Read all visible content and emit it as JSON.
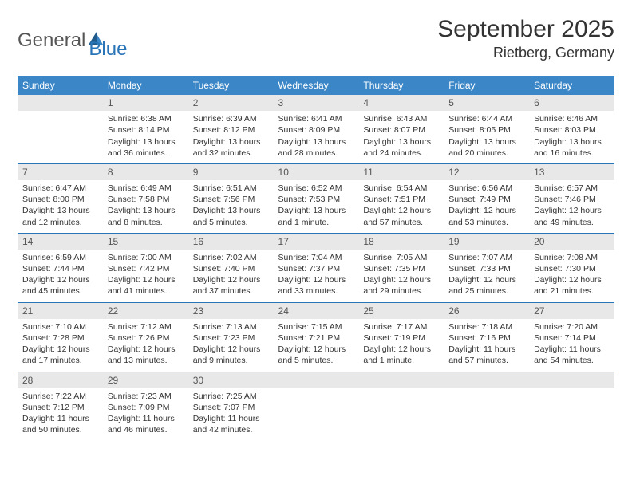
{
  "logo": {
    "text1": "General",
    "text2": "Blue"
  },
  "title": "September 2025",
  "location": "Rietberg, Germany",
  "colors": {
    "header_bg": "#3b86c6",
    "header_text": "#ffffff",
    "border": "#2a74b8",
    "daynum_bg": "#e8e8e8",
    "text": "#333333",
    "logo_gray": "#555555",
    "logo_blue": "#2a74b8"
  },
  "fonts": {
    "title_size": 30,
    "location_size": 18,
    "th_size": 12,
    "cell_size": 10.5,
    "daynum_size": 12
  },
  "daysOfWeek": [
    "Sunday",
    "Monday",
    "Tuesday",
    "Wednesday",
    "Thursday",
    "Friday",
    "Saturday"
  ],
  "weeks": [
    [
      {
        "n": "",
        "sr": "",
        "ss": "",
        "dl": ""
      },
      {
        "n": "1",
        "sr": "Sunrise: 6:38 AM",
        "ss": "Sunset: 8:14 PM",
        "dl": "Daylight: 13 hours and 36 minutes."
      },
      {
        "n": "2",
        "sr": "Sunrise: 6:39 AM",
        "ss": "Sunset: 8:12 PM",
        "dl": "Daylight: 13 hours and 32 minutes."
      },
      {
        "n": "3",
        "sr": "Sunrise: 6:41 AM",
        "ss": "Sunset: 8:09 PM",
        "dl": "Daylight: 13 hours and 28 minutes."
      },
      {
        "n": "4",
        "sr": "Sunrise: 6:43 AM",
        "ss": "Sunset: 8:07 PM",
        "dl": "Daylight: 13 hours and 24 minutes."
      },
      {
        "n": "5",
        "sr": "Sunrise: 6:44 AM",
        "ss": "Sunset: 8:05 PM",
        "dl": "Daylight: 13 hours and 20 minutes."
      },
      {
        "n": "6",
        "sr": "Sunrise: 6:46 AM",
        "ss": "Sunset: 8:03 PM",
        "dl": "Daylight: 13 hours and 16 minutes."
      }
    ],
    [
      {
        "n": "7",
        "sr": "Sunrise: 6:47 AM",
        "ss": "Sunset: 8:00 PM",
        "dl": "Daylight: 13 hours and 12 minutes."
      },
      {
        "n": "8",
        "sr": "Sunrise: 6:49 AM",
        "ss": "Sunset: 7:58 PM",
        "dl": "Daylight: 13 hours and 8 minutes."
      },
      {
        "n": "9",
        "sr": "Sunrise: 6:51 AM",
        "ss": "Sunset: 7:56 PM",
        "dl": "Daylight: 13 hours and 5 minutes."
      },
      {
        "n": "10",
        "sr": "Sunrise: 6:52 AM",
        "ss": "Sunset: 7:53 PM",
        "dl": "Daylight: 13 hours and 1 minute."
      },
      {
        "n": "11",
        "sr": "Sunrise: 6:54 AM",
        "ss": "Sunset: 7:51 PM",
        "dl": "Daylight: 12 hours and 57 minutes."
      },
      {
        "n": "12",
        "sr": "Sunrise: 6:56 AM",
        "ss": "Sunset: 7:49 PM",
        "dl": "Daylight: 12 hours and 53 minutes."
      },
      {
        "n": "13",
        "sr": "Sunrise: 6:57 AM",
        "ss": "Sunset: 7:46 PM",
        "dl": "Daylight: 12 hours and 49 minutes."
      }
    ],
    [
      {
        "n": "14",
        "sr": "Sunrise: 6:59 AM",
        "ss": "Sunset: 7:44 PM",
        "dl": "Daylight: 12 hours and 45 minutes."
      },
      {
        "n": "15",
        "sr": "Sunrise: 7:00 AM",
        "ss": "Sunset: 7:42 PM",
        "dl": "Daylight: 12 hours and 41 minutes."
      },
      {
        "n": "16",
        "sr": "Sunrise: 7:02 AM",
        "ss": "Sunset: 7:40 PM",
        "dl": "Daylight: 12 hours and 37 minutes."
      },
      {
        "n": "17",
        "sr": "Sunrise: 7:04 AM",
        "ss": "Sunset: 7:37 PM",
        "dl": "Daylight: 12 hours and 33 minutes."
      },
      {
        "n": "18",
        "sr": "Sunrise: 7:05 AM",
        "ss": "Sunset: 7:35 PM",
        "dl": "Daylight: 12 hours and 29 minutes."
      },
      {
        "n": "19",
        "sr": "Sunrise: 7:07 AM",
        "ss": "Sunset: 7:33 PM",
        "dl": "Daylight: 12 hours and 25 minutes."
      },
      {
        "n": "20",
        "sr": "Sunrise: 7:08 AM",
        "ss": "Sunset: 7:30 PM",
        "dl": "Daylight: 12 hours and 21 minutes."
      }
    ],
    [
      {
        "n": "21",
        "sr": "Sunrise: 7:10 AM",
        "ss": "Sunset: 7:28 PM",
        "dl": "Daylight: 12 hours and 17 minutes."
      },
      {
        "n": "22",
        "sr": "Sunrise: 7:12 AM",
        "ss": "Sunset: 7:26 PM",
        "dl": "Daylight: 12 hours and 13 minutes."
      },
      {
        "n": "23",
        "sr": "Sunrise: 7:13 AM",
        "ss": "Sunset: 7:23 PM",
        "dl": "Daylight: 12 hours and 9 minutes."
      },
      {
        "n": "24",
        "sr": "Sunrise: 7:15 AM",
        "ss": "Sunset: 7:21 PM",
        "dl": "Daylight: 12 hours and 5 minutes."
      },
      {
        "n": "25",
        "sr": "Sunrise: 7:17 AM",
        "ss": "Sunset: 7:19 PM",
        "dl": "Daylight: 12 hours and 1 minute."
      },
      {
        "n": "26",
        "sr": "Sunrise: 7:18 AM",
        "ss": "Sunset: 7:16 PM",
        "dl": "Daylight: 11 hours and 57 minutes."
      },
      {
        "n": "27",
        "sr": "Sunrise: 7:20 AM",
        "ss": "Sunset: 7:14 PM",
        "dl": "Daylight: 11 hours and 54 minutes."
      }
    ],
    [
      {
        "n": "28",
        "sr": "Sunrise: 7:22 AM",
        "ss": "Sunset: 7:12 PM",
        "dl": "Daylight: 11 hours and 50 minutes."
      },
      {
        "n": "29",
        "sr": "Sunrise: 7:23 AM",
        "ss": "Sunset: 7:09 PM",
        "dl": "Daylight: 11 hours and 46 minutes."
      },
      {
        "n": "30",
        "sr": "Sunrise: 7:25 AM",
        "ss": "Sunset: 7:07 PM",
        "dl": "Daylight: 11 hours and 42 minutes."
      },
      {
        "n": "",
        "sr": "",
        "ss": "",
        "dl": ""
      },
      {
        "n": "",
        "sr": "",
        "ss": "",
        "dl": ""
      },
      {
        "n": "",
        "sr": "",
        "ss": "",
        "dl": ""
      },
      {
        "n": "",
        "sr": "",
        "ss": "",
        "dl": ""
      }
    ]
  ]
}
